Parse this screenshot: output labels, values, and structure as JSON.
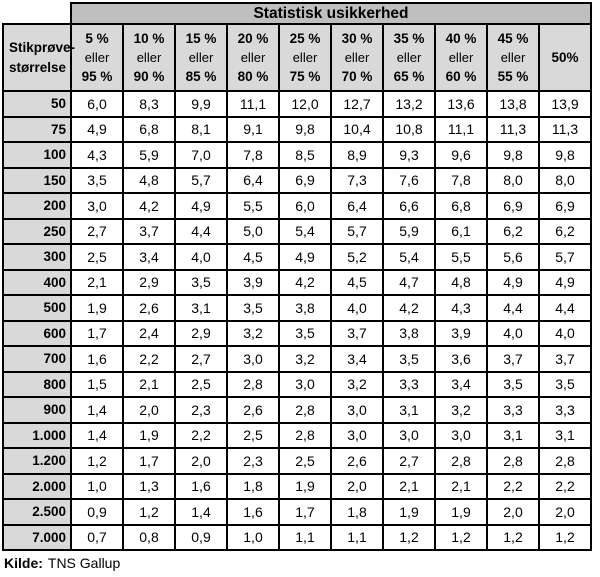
{
  "table": {
    "title": "Statistisk usikkerhed",
    "row_header_lines": [
      "Stikprøve-",
      "størrelse"
    ],
    "column_headers": [
      [
        "5 %",
        "eller",
        "95 %"
      ],
      [
        "10 %",
        "eller",
        "90 %"
      ],
      [
        "15 %",
        "eller",
        "85 %"
      ],
      [
        "20 %",
        "eller",
        "80 %"
      ],
      [
        "25 %",
        "eller",
        "75 %"
      ],
      [
        "30 %",
        "eller",
        "70 %"
      ],
      [
        "35 %",
        "eller",
        "65 %"
      ],
      [
        "40 %",
        "eller",
        "60 %"
      ],
      [
        "45 %",
        "eller",
        "55 %"
      ],
      [
        "50%"
      ]
    ],
    "rows": [
      {
        "label": "50",
        "values": [
          "6,0",
          "8,3",
          "9,9",
          "11,1",
          "12,0",
          "12,7",
          "13,2",
          "13,6",
          "13,8",
          "13,9"
        ]
      },
      {
        "label": "75",
        "values": [
          "4,9",
          "6,8",
          "8,1",
          "9,1",
          "9,8",
          "10,4",
          "10,8",
          "11,1",
          "11,3",
          "11,3"
        ]
      },
      {
        "label": "100",
        "values": [
          "4,3",
          "5,9",
          "7,0",
          "7,8",
          "8,5",
          "8,9",
          "9,3",
          "9,6",
          "9,8",
          "9,8"
        ]
      },
      {
        "label": "150",
        "values": [
          "3,5",
          "4,8",
          "5,7",
          "6,4",
          "6,9",
          "7,3",
          "7,6",
          "7,8",
          "8,0",
          "8,0"
        ]
      },
      {
        "label": "200",
        "values": [
          "3,0",
          "4,2",
          "4,9",
          "5,5",
          "6,0",
          "6,4",
          "6,6",
          "6,8",
          "6,9",
          "6,9"
        ]
      },
      {
        "label": "250",
        "values": [
          "2,7",
          "3,7",
          "4,4",
          "5,0",
          "5,4",
          "5,7",
          "5,9",
          "6,1",
          "6,2",
          "6,2"
        ]
      },
      {
        "label": "300",
        "values": [
          "2,5",
          "3,4",
          "4,0",
          "4,5",
          "4,9",
          "5,2",
          "5,4",
          "5,5",
          "5,6",
          "5,7"
        ]
      },
      {
        "label": "400",
        "values": [
          "2,1",
          "2,9",
          "3,5",
          "3,9",
          "4,2",
          "4,5",
          "4,7",
          "4,8",
          "4,9",
          "4,9"
        ]
      },
      {
        "label": "500",
        "values": [
          "1,9",
          "2,6",
          "3,1",
          "3,5",
          "3,8",
          "4,0",
          "4,2",
          "4,3",
          "4,4",
          "4,4"
        ]
      },
      {
        "label": "600",
        "values": [
          "1,7",
          "2,4",
          "2,9",
          "3,2",
          "3,5",
          "3,7",
          "3,8",
          "3,9",
          "4,0",
          "4,0"
        ]
      },
      {
        "label": "700",
        "values": [
          "1,6",
          "2,2",
          "2,7",
          "3,0",
          "3,2",
          "3,4",
          "3,5",
          "3,6",
          "3,7",
          "3,7"
        ]
      },
      {
        "label": "800",
        "values": [
          "1,5",
          "2,1",
          "2,5",
          "2,8",
          "3,0",
          "3,2",
          "3,3",
          "3,4",
          "3,5",
          "3,5"
        ]
      },
      {
        "label": "900",
        "values": [
          "1,4",
          "2,0",
          "2,3",
          "2,6",
          "2,8",
          "3,0",
          "3,1",
          "3,2",
          "3,3",
          "3,3"
        ]
      },
      {
        "label": "1.000",
        "values": [
          "1,4",
          "1,9",
          "2,2",
          "2,5",
          "2,8",
          "3,0",
          "3,0",
          "3,0",
          "3,1",
          "3,1"
        ]
      },
      {
        "label": "1.200",
        "values": [
          "1,2",
          "1,7",
          "2,0",
          "2,3",
          "2,5",
          "2,6",
          "2,7",
          "2,8",
          "2,8",
          "2,8"
        ]
      },
      {
        "label": "2.000",
        "values": [
          "1,0",
          "1,3",
          "1,6",
          "1,8",
          "1,9",
          "2,0",
          "2,1",
          "2,1",
          "2,2",
          "2,2"
        ]
      },
      {
        "label": "2.500",
        "values": [
          "0,9",
          "1,2",
          "1,4",
          "1,6",
          "1,7",
          "1,8",
          "1,9",
          "1,9",
          "2,0",
          "2,0"
        ]
      },
      {
        "label": "7.000",
        "values": [
          "0,7",
          "0,8",
          "0,9",
          "1,0",
          "1,1",
          "1,1",
          "1,2",
          "1,2",
          "1,2",
          "1,2"
        ]
      }
    ]
  },
  "footer": {
    "label": "Kilde:",
    "source": "TNS Gallup"
  },
  "colors": {
    "banner_bg": "#bfbfbf",
    "header_bg": "#d9d9d9",
    "border_color": "#000000",
    "text_color": "#000000",
    "page_bg": "#ffffff"
  }
}
